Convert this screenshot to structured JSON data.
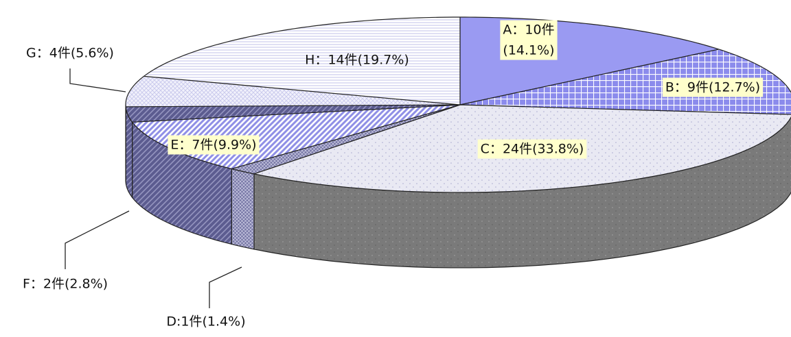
{
  "chart_data": {
    "type": "pie",
    "three_d": true,
    "title": "",
    "legend": "none",
    "slices": [
      {
        "id": "A",
        "label": "A：10件",
        "pct_label": "(14.1%)",
        "value": 10,
        "percent": 14.1
      },
      {
        "id": "B",
        "label": "B：9件",
        "pct_label": "(12.7%)",
        "value": 9,
        "percent": 12.7
      },
      {
        "id": "C",
        "label": "C：24件",
        "pct_label": "(33.8%)",
        "value": 24,
        "percent": 33.8
      },
      {
        "id": "D",
        "label": "D:1件",
        "pct_label": "(1.4%)",
        "value": 1,
        "percent": 1.4
      },
      {
        "id": "E",
        "label": "E：7件",
        "pct_label": "(9.9%)",
        "value": 7,
        "percent": 9.9
      },
      {
        "id": "F",
        "label": "F：2件",
        "pct_label": "(2.8%)",
        "value": 2,
        "percent": 2.8
      },
      {
        "id": "G",
        "label": "G：4件",
        "pct_label": "(5.6%)",
        "value": 4,
        "percent": 5.6
      },
      {
        "id": "H",
        "label": "H：14件",
        "pct_label": "(19.7%)",
        "value": 14,
        "percent": 19.7
      }
    ],
    "colors": {
      "A": "#9a9af2",
      "B": "#8b8bec",
      "C": "#e9e9f3",
      "D": "#7a7aa8",
      "E": "#8f8fe6",
      "F": "#5c5c90",
      "G": "#c8c8ec",
      "H": "#d9d9f2",
      "label_box": "#ffffcc",
      "side_default": "#7d7d7d"
    }
  }
}
